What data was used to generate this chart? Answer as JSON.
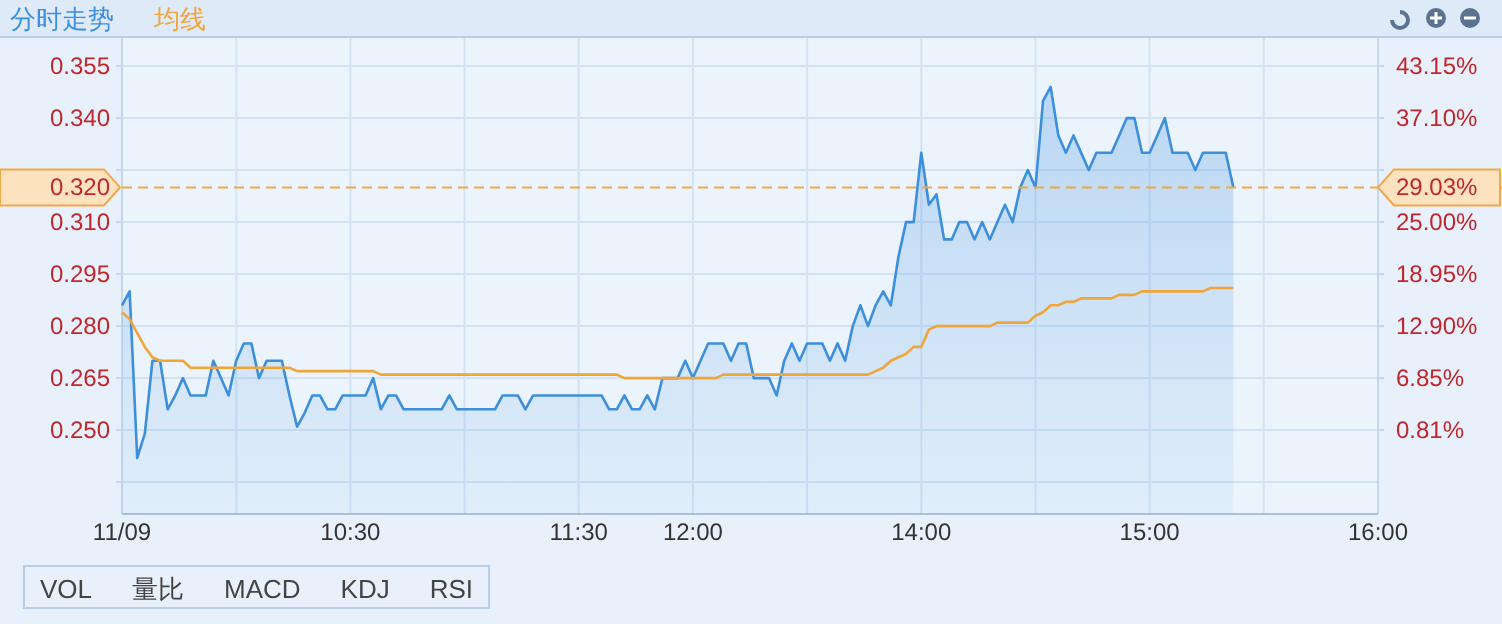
{
  "chart_data": {
    "type": "area",
    "legend": "top left",
    "grid": true,
    "categories": [
      "11/09",
      null,
      null,
      null,
      null,
      null,
      null,
      null,
      null,
      null,
      null,
      null,
      null,
      null,
      null,
      null,
      null,
      null,
      null,
      null,
      null,
      null,
      null,
      null,
      null,
      null,
      null,
      null,
      null,
      null,
      "10:30",
      null,
      null,
      null,
      null,
      null,
      null,
      null,
      null,
      null,
      null,
      null,
      null,
      null,
      null,
      null,
      null,
      null,
      null,
      null,
      null,
      null,
      null,
      null,
      null,
      null,
      null,
      null,
      null,
      null,
      "11:30",
      null,
      null,
      null,
      null,
      null,
      null,
      null,
      null,
      null,
      null,
      null,
      null,
      null,
      null,
      "12:00",
      null,
      null,
      null,
      null,
      null,
      null,
      null,
      null,
      null,
      null,
      null,
      null,
      null,
      null,
      null,
      null,
      null,
      null,
      null,
      null,
      null,
      null,
      null,
      null,
      null,
      null,
      null,
      null,
      null,
      "14:00",
      null,
      null,
      null,
      null,
      null,
      null,
      null,
      null,
      null,
      null,
      null,
      null,
      null,
      null,
      null,
      null,
      null,
      null,
      null,
      null,
      null,
      null,
      null,
      null,
      null,
      null,
      null,
      null,
      null,
      "15:00",
      null,
      null,
      null,
      null,
      null,
      null,
      null,
      null,
      null,
      null,
      null,
      null,
      null,
      null,
      null,
      null,
      null,
      null,
      null,
      null,
      null,
      null,
      null,
      null,
      null,
      null,
      null,
      null,
      null,
      "16:00"
    ],
    "ylim": [
      0.2258,
      0.3631
    ],
    "yticks": [
      {
        "value": 0.235,
        "label": null
      },
      {
        "value": 0.25,
        "label": "0.250"
      },
      {
        "value": 0.265,
        "label": "0.265"
      },
      {
        "value": 0.28,
        "label": "0.280"
      },
      {
        "value": 0.295,
        "label": "0.295"
      },
      {
        "value": 0.31,
        "label": "0.310"
      },
      {
        "value": 0.325,
        "label": null
      },
      {
        "value": 0.34,
        "label": "0.340"
      },
      {
        "value": 0.355,
        "label": "0.355"
      }
    ],
    "y2lim": [
      -8.95,
      46.41
    ],
    "y2ticks": [
      {
        "value": 0.81,
        "label": "0.81%"
      },
      {
        "value": 6.85,
        "label": "6.85%"
      },
      {
        "value": 12.9,
        "label": "12.90%"
      },
      {
        "value": 18.95,
        "label": "18.95%"
      },
      {
        "value": 25,
        "label": "25.00%"
      },
      {
        "value": 31.05,
        "label": null
      },
      {
        "value": 37.1,
        "label": "37.10%"
      },
      {
        "value": 43.15,
        "label": "43.15%"
      }
    ],
    "ref_lines": [
      {
        "axis": "y",
        "value": 0.32,
        "label": "0.320",
        "color": "#f0a848",
        "line_style": "dashed"
      }
    ],
    "series": [
      {
        "name": "分时走势",
        "color": "#3c8fdc",
        "values": [
          0.286,
          0.29,
          0.242,
          0.249,
          0.27,
          0.27,
          0.256,
          0.26,
          0.265,
          0.26,
          0.26,
          0.26,
          0.27,
          0.265,
          0.26,
          0.27,
          0.275,
          0.275,
          0.265,
          0.27,
          0.27,
          0.27,
          0.26,
          0.251,
          0.255,
          0.26,
          0.26,
          0.256,
          0.256,
          0.26,
          0.26,
          0.26,
          0.26,
          0.265,
          0.256,
          0.26,
          0.26,
          0.256,
          0.256,
          0.256,
          0.256,
          0.256,
          0.256,
          0.26,
          0.256,
          0.256,
          0.256,
          0.256,
          0.256,
          0.256,
          0.26,
          0.26,
          0.26,
          0.256,
          0.26,
          0.26,
          0.26,
          0.26,
          0.26,
          0.26,
          0.26,
          0.26,
          0.26,
          0.26,
          0.256,
          0.256,
          0.26,
          0.256,
          0.256,
          0.26,
          0.256,
          0.265,
          0.265,
          0.265,
          0.27,
          0.265,
          0.27,
          0.275,
          0.275,
          0.275,
          0.27,
          0.275,
          0.275,
          0.265,
          0.265,
          0.265,
          0.26,
          0.27,
          0.275,
          0.27,
          0.275,
          0.275,
          0.275,
          0.27,
          0.275,
          0.27,
          0.28,
          0.286,
          0.28,
          0.286,
          0.29,
          0.286,
          0.3,
          0.31,
          0.31,
          0.33,
          0.315,
          0.318,
          0.305,
          0.305,
          0.31,
          0.31,
          0.305,
          0.31,
          0.305,
          0.31,
          0.315,
          0.31,
          0.32,
          0.325,
          0.32,
          0.345,
          0.349,
          0.335,
          0.33,
          0.335,
          0.33,
          0.325,
          0.33,
          0.33,
          0.33,
          0.335,
          0.34,
          0.34,
          0.33,
          0.33,
          0.335,
          0.34,
          0.33,
          0.33,
          0.33,
          0.325,
          0.33,
          0.33,
          0.33,
          0.33,
          0.32,
          null,
          null,
          null,
          null,
          null,
          null,
          null,
          null,
          null,
          null,
          null,
          null,
          null,
          null,
          null,
          null,
          null,
          null,
          null
        ]
      },
      {
        "name": "均线",
        "type": "line",
        "color": "#f0a53a",
        "values": [
          0.284,
          0.282,
          0.278,
          0.274,
          0.271,
          0.27,
          0.27,
          0.27,
          0.27,
          0.268,
          0.268,
          0.268,
          0.268,
          0.268,
          0.268,
          0.268,
          0.268,
          0.268,
          0.268,
          0.268,
          0.268,
          0.268,
          0.268,
          0.267,
          0.267,
          0.267,
          0.267,
          0.267,
          0.267,
          0.267,
          0.267,
          0.267,
          0.267,
          0.267,
          0.266,
          0.266,
          0.266,
          0.266,
          0.266,
          0.266,
          0.266,
          0.266,
          0.266,
          0.266,
          0.266,
          0.266,
          0.266,
          0.266,
          0.266,
          0.266,
          0.266,
          0.266,
          0.266,
          0.266,
          0.266,
          0.266,
          0.266,
          0.266,
          0.266,
          0.266,
          0.266,
          0.266,
          0.266,
          0.266,
          0.266,
          0.266,
          0.265,
          0.265,
          0.265,
          0.265,
          0.265,
          0.265,
          0.265,
          0.265,
          0.265,
          0.265,
          0.265,
          0.265,
          0.265,
          0.266,
          0.266,
          0.266,
          0.266,
          0.266,
          0.266,
          0.266,
          0.266,
          0.266,
          0.266,
          0.266,
          0.266,
          0.266,
          0.266,
          0.266,
          0.266,
          0.266,
          0.266,
          0.266,
          0.266,
          0.267,
          0.268,
          0.27,
          0.271,
          0.272,
          0.274,
          0.274,
          0.279,
          0.28,
          0.28,
          0.28,
          0.28,
          0.28,
          0.28,
          0.28,
          0.28,
          0.281,
          0.281,
          0.281,
          0.281,
          0.281,
          0.283,
          0.284,
          0.286,
          0.286,
          0.287,
          0.287,
          0.288,
          0.288,
          0.288,
          0.288,
          0.288,
          0.289,
          0.289,
          0.289,
          0.29,
          0.29,
          0.29,
          0.29,
          0.29,
          0.29,
          0.29,
          0.29,
          0.29,
          0.291,
          0.291,
          0.291,
          0.291,
          null,
          null,
          null,
          null,
          null,
          null,
          null,
          null,
          null,
          null,
          null,
          null,
          null,
          null,
          null,
          null,
          null,
          null,
          null
        ]
      }
    ],
    "annotations": [
      {
        "text": "29.03%",
        "x": "16:00",
        "y": 0.32
      },
      "VOL",
      "量比",
      "MACD",
      "KDJ",
      "RSI"
    ]
  }
}
